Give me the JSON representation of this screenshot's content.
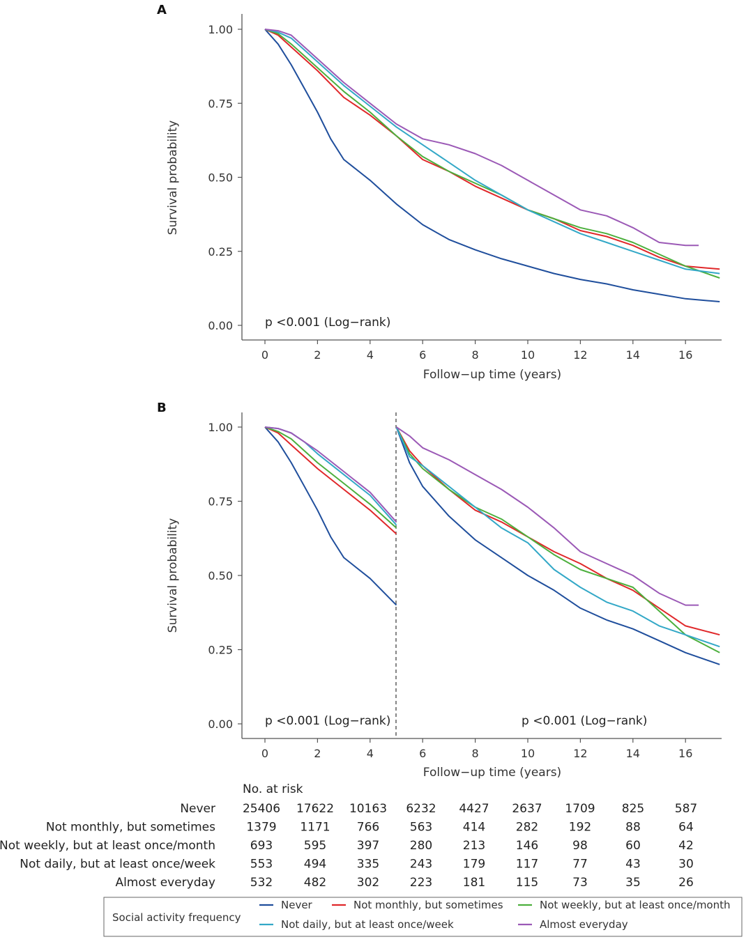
{
  "colors": {
    "never": "#1f4e9c",
    "not_monthly": "#e0282a",
    "not_weekly": "#4caf3d",
    "not_daily": "#33a8c7",
    "almost_everyday": "#9b59b6"
  },
  "panels": [
    {
      "letter": "A",
      "ylabel": "Survival probability",
      "xlabel": "Follow−up time (years)",
      "pvalues": [
        "p <0.001 (Log−rank)"
      ]
    },
    {
      "letter": "B",
      "ylabel": "Survival probability",
      "xlabel": "Follow−up time (years)",
      "pvalues": [
        "p <0.001 (Log−rank)",
        "p <0.001 (Log−rank)"
      ]
    }
  ],
  "risk_table": {
    "title": "No. at risk",
    "rows": [
      {
        "label": "Never",
        "values": [
          "25406",
          "17622",
          "10163",
          "6232",
          "4427",
          "2637",
          "1709",
          "825",
          "587"
        ]
      },
      {
        "label": "Not monthly, but sometimes",
        "values": [
          "1379",
          "1171",
          "766",
          "563",
          "414",
          "282",
          "192",
          "88",
          "64"
        ]
      },
      {
        "label": "Not weekly, but at least once/month",
        "values": [
          "693",
          "595",
          "397",
          "280",
          "213",
          "146",
          "98",
          "60",
          "42"
        ]
      },
      {
        "label": "Not daily, but at least once/week",
        "values": [
          "553",
          "494",
          "335",
          "243",
          "179",
          "117",
          "77",
          "43",
          "30"
        ]
      },
      {
        "label": "Almost everyday",
        "values": [
          "532",
          "482",
          "302",
          "223",
          "181",
          "115",
          "73",
          "35",
          "26"
        ]
      }
    ]
  },
  "legend": {
    "title": "Social activity frequency",
    "items": [
      {
        "key": "never",
        "label": "Never"
      },
      {
        "key": "not_monthly",
        "label": "Not monthly, but sometimes"
      },
      {
        "key": "not_weekly",
        "label": "Not weekly, but at least once/month"
      },
      {
        "key": "not_daily",
        "label": "Not daily, but at least once/week"
      },
      {
        "key": "almost_everyday",
        "label": "Almost everyday"
      }
    ]
  },
  "chart_data": [
    {
      "type": "line",
      "title": "A",
      "xlabel": "Follow−up time (years)",
      "ylabel": "Survival probability",
      "xlim": [
        -0.8,
        17.5
      ],
      "ylim": [
        0,
        1
      ],
      "xticks": [
        0,
        2,
        4,
        6,
        8,
        10,
        12,
        14,
        16
      ],
      "yticks": [
        "0.00",
        "0.25",
        "0.50",
        "0.75",
        "1.00"
      ],
      "annotation": "p <0.001 (Log−rank)",
      "series": [
        {
          "key": "never",
          "name": "Never",
          "points": [
            [
              0,
              1.0
            ],
            [
              0.5,
              0.95
            ],
            [
              1,
              0.88
            ],
            [
              1.5,
              0.8
            ],
            [
              2,
              0.72
            ],
            [
              2.5,
              0.63
            ],
            [
              3,
              0.56
            ],
            [
              4,
              0.49
            ],
            [
              5,
              0.41
            ],
            [
              6,
              0.34
            ],
            [
              7,
              0.29
            ],
            [
              8,
              0.255
            ],
            [
              9,
              0.225
            ],
            [
              10,
              0.2
            ],
            [
              11,
              0.175
            ],
            [
              12,
              0.155
            ],
            [
              13,
              0.14
            ],
            [
              14,
              0.12
            ],
            [
              15,
              0.105
            ],
            [
              16,
              0.09
            ],
            [
              17.3,
              0.08
            ]
          ]
        },
        {
          "key": "not_monthly",
          "name": "Not monthly, but sometimes",
          "points": [
            [
              0,
              1.0
            ],
            [
              0.5,
              0.98
            ],
            [
              1,
              0.94
            ],
            [
              1.5,
              0.9
            ],
            [
              2,
              0.86
            ],
            [
              3,
              0.77
            ],
            [
              4,
              0.71
            ],
            [
              5,
              0.64
            ],
            [
              6,
              0.56
            ],
            [
              7,
              0.52
            ],
            [
              8,
              0.47
            ],
            [
              9,
              0.43
            ],
            [
              10,
              0.39
            ],
            [
              11,
              0.36
            ],
            [
              12,
              0.32
            ],
            [
              13,
              0.3
            ],
            [
              14,
              0.27
            ],
            [
              15,
              0.23
            ],
            [
              16,
              0.2
            ],
            [
              17.3,
              0.19
            ]
          ]
        },
        {
          "key": "not_weekly",
          "name": "Not weekly, but at least once/month",
          "points": [
            [
              0,
              1.0
            ],
            [
              0.5,
              0.985
            ],
            [
              1,
              0.95
            ],
            [
              1.5,
              0.91
            ],
            [
              2,
              0.87
            ],
            [
              3,
              0.79
            ],
            [
              4,
              0.72
            ],
            [
              5,
              0.64
            ],
            [
              6,
              0.57
            ],
            [
              7,
              0.52
            ],
            [
              8,
              0.48
            ],
            [
              9,
              0.44
            ],
            [
              10,
              0.39
            ],
            [
              11,
              0.36
            ],
            [
              12,
              0.33
            ],
            [
              13,
              0.31
            ],
            [
              14,
              0.28
            ],
            [
              15,
              0.24
            ],
            [
              16,
              0.2
            ],
            [
              17.3,
              0.16
            ]
          ]
        },
        {
          "key": "not_daily",
          "name": "Not daily, but at least once/week",
          "points": [
            [
              0,
              1.0
            ],
            [
              0.5,
              0.99
            ],
            [
              1,
              0.97
            ],
            [
              1.5,
              0.93
            ],
            [
              2,
              0.89
            ],
            [
              3,
              0.81
            ],
            [
              4,
              0.74
            ],
            [
              5,
              0.67
            ],
            [
              6,
              0.61
            ],
            [
              7,
              0.55
            ],
            [
              8,
              0.49
            ],
            [
              9,
              0.44
            ],
            [
              10,
              0.39
            ],
            [
              11,
              0.35
            ],
            [
              12,
              0.31
            ],
            [
              13,
              0.28
            ],
            [
              14,
              0.25
            ],
            [
              15,
              0.22
            ],
            [
              16,
              0.19
            ],
            [
              17.3,
              0.175
            ]
          ]
        },
        {
          "key": "almost_everyday",
          "name": "Almost everyday",
          "points": [
            [
              0,
              1.0
            ],
            [
              0.5,
              0.995
            ],
            [
              1,
              0.98
            ],
            [
              1.5,
              0.94
            ],
            [
              2,
              0.9
            ],
            [
              3,
              0.82
            ],
            [
              4,
              0.75
            ],
            [
              5,
              0.68
            ],
            [
              6,
              0.63
            ],
            [
              7,
              0.61
            ],
            [
              8,
              0.58
            ],
            [
              9,
              0.54
            ],
            [
              10,
              0.49
            ],
            [
              11,
              0.44
            ],
            [
              12,
              0.39
            ],
            [
              13,
              0.37
            ],
            [
              14,
              0.33
            ],
            [
              15,
              0.28
            ],
            [
              16,
              0.27
            ],
            [
              16.5,
              0.27
            ]
          ]
        }
      ]
    },
    {
      "type": "line",
      "title": "B",
      "xlabel": "Follow−up time (years)",
      "ylabel": "Survival probability",
      "xlim": [
        -0.8,
        17.5
      ],
      "ylim": [
        0,
        1
      ],
      "xticks": [
        0,
        2,
        4,
        6,
        8,
        10,
        12,
        14,
        16
      ],
      "yticks": [
        "0.00",
        "0.25",
        "0.50",
        "0.75",
        "1.00"
      ],
      "cut_at": 5,
      "annotations": [
        "p <0.001 (Log−rank)",
        "p <0.001 (Log−rank)"
      ],
      "series": [
        {
          "key": "never",
          "name": "Never",
          "segments": [
            [
              [
                0,
                1.0
              ],
              [
                0.5,
                0.95
              ],
              [
                1,
                0.88
              ],
              [
                1.5,
                0.8
              ],
              [
                2,
                0.72
              ],
              [
                2.5,
                0.63
              ],
              [
                3,
                0.56
              ],
              [
                4,
                0.49
              ],
              [
                5,
                0.4
              ]
            ],
            [
              [
                5,
                1.0
              ],
              [
                5.5,
                0.88
              ],
              [
                6,
                0.8
              ],
              [
                7,
                0.7
              ],
              [
                8,
                0.62
              ],
              [
                9,
                0.56
              ],
              [
                10,
                0.5
              ],
              [
                11,
                0.45
              ],
              [
                12,
                0.39
              ],
              [
                13,
                0.35
              ],
              [
                14,
                0.32
              ],
              [
                15,
                0.28
              ],
              [
                16,
                0.24
              ],
              [
                17.3,
                0.2
              ]
            ]
          ]
        },
        {
          "key": "not_monthly",
          "name": "Not monthly, but sometimes",
          "segments": [
            [
              [
                0,
                1.0
              ],
              [
                0.5,
                0.98
              ],
              [
                1,
                0.94
              ],
              [
                1.5,
                0.9
              ],
              [
                2,
                0.86
              ],
              [
                3,
                0.79
              ],
              [
                4,
                0.72
              ],
              [
                5,
                0.64
              ]
            ],
            [
              [
                5,
                1.0
              ],
              [
                5.5,
                0.92
              ],
              [
                6,
                0.87
              ],
              [
                7,
                0.79
              ],
              [
                8,
                0.72
              ],
              [
                9,
                0.68
              ],
              [
                10,
                0.63
              ],
              [
                11,
                0.58
              ],
              [
                12,
                0.54
              ],
              [
                13,
                0.49
              ],
              [
                14,
                0.45
              ],
              [
                15,
                0.39
              ],
              [
                16,
                0.33
              ],
              [
                17.3,
                0.3
              ]
            ]
          ]
        },
        {
          "key": "not_weekly",
          "name": "Not weekly, but at least once/month",
          "segments": [
            [
              [
                0,
                1.0
              ],
              [
                0.5,
                0.985
              ],
              [
                1,
                0.96
              ],
              [
                1.5,
                0.92
              ],
              [
                2,
                0.88
              ],
              [
                3,
                0.81
              ],
              [
                4,
                0.74
              ],
              [
                5,
                0.66
              ]
            ],
            [
              [
                5,
                1.0
              ],
              [
                5.5,
                0.91
              ],
              [
                6,
                0.86
              ],
              [
                7,
                0.79
              ],
              [
                8,
                0.73
              ],
              [
                9,
                0.69
              ],
              [
                10,
                0.63
              ],
              [
                11,
                0.57
              ],
              [
                12,
                0.52
              ],
              [
                13,
                0.49
              ],
              [
                14,
                0.46
              ],
              [
                15,
                0.38
              ],
              [
                16,
                0.3
              ],
              [
                17.3,
                0.24
              ]
            ]
          ]
        },
        {
          "key": "not_daily",
          "name": "Not daily, but at least once/week",
          "segments": [
            [
              [
                0,
                1.0
              ],
              [
                0.5,
                0.995
              ],
              [
                1,
                0.98
              ],
              [
                1.5,
                0.95
              ],
              [
                2,
                0.91
              ],
              [
                3,
                0.84
              ],
              [
                4,
                0.77
              ],
              [
                5,
                0.67
              ]
            ],
            [
              [
                5,
                1.0
              ],
              [
                5.5,
                0.9
              ],
              [
                6,
                0.87
              ],
              [
                7,
                0.8
              ],
              [
                8,
                0.73
              ],
              [
                9,
                0.66
              ],
              [
                10,
                0.61
              ],
              [
                11,
                0.52
              ],
              [
                12,
                0.46
              ],
              [
                13,
                0.41
              ],
              [
                14,
                0.38
              ],
              [
                15,
                0.33
              ],
              [
                16,
                0.3
              ],
              [
                17.3,
                0.26
              ]
            ]
          ]
        },
        {
          "key": "almost_everyday",
          "name": "Almost everyday",
          "segments": [
            [
              [
                0,
                1.0
              ],
              [
                0.5,
                0.995
              ],
              [
                1,
                0.98
              ],
              [
                1.5,
                0.95
              ],
              [
                2,
                0.92
              ],
              [
                3,
                0.85
              ],
              [
                4,
                0.78
              ],
              [
                5,
                0.68
              ]
            ],
            [
              [
                5,
                1.0
              ],
              [
                5.5,
                0.97
              ],
              [
                6,
                0.93
              ],
              [
                7,
                0.89
              ],
              [
                8,
                0.84
              ],
              [
                9,
                0.79
              ],
              [
                10,
                0.73
              ],
              [
                11,
                0.66
              ],
              [
                12,
                0.58
              ],
              [
                13,
                0.54
              ],
              [
                14,
                0.5
              ],
              [
                15,
                0.44
              ],
              [
                16,
                0.4
              ],
              [
                16.5,
                0.4
              ]
            ]
          ]
        }
      ]
    }
  ]
}
